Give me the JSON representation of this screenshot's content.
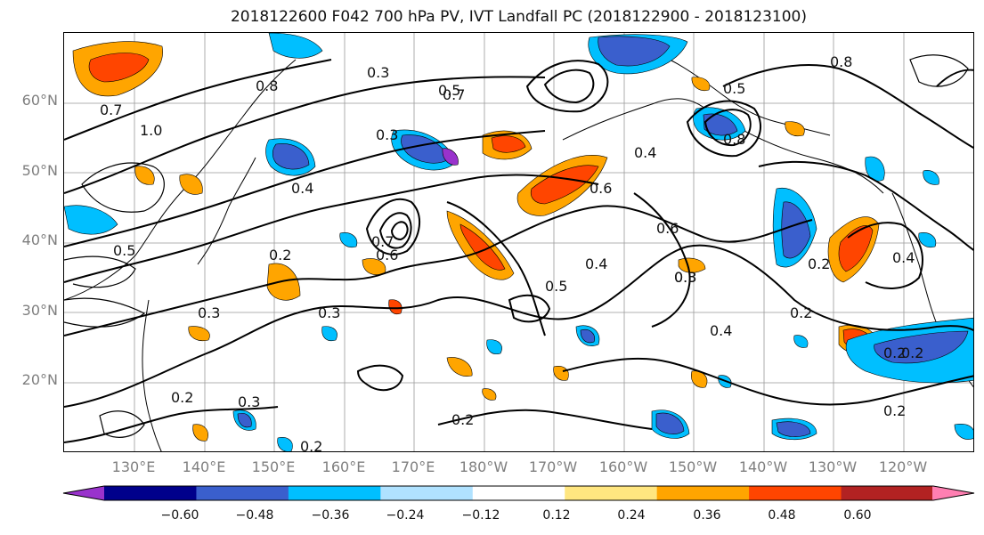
{
  "title": "2018122600 F042 700 hPa PV, IVT Landfall PC (2018122900 - 2018123100)",
  "lat_labels": [
    "60°N",
    "50°N",
    "40°N",
    "30°N",
    "20°N"
  ],
  "lon_labels": [
    "130°E",
    "140°E",
    "150°E",
    "160°E",
    "170°E",
    "180°W",
    "170°W",
    "160°W",
    "150°W",
    "140°W",
    "130°W",
    "120°W"
  ],
  "colorbar": {
    "ticks": [
      "−0.60",
      "−0.48",
      "−0.36",
      "−0.24",
      "−0.12",
      "0.12",
      "0.24",
      "0.36",
      "0.48",
      "0.60"
    ],
    "colors": [
      "#9932cc",
      "#00008b",
      "#3a5fcd",
      "#00bfff",
      "#b0e2ff",
      "#ffffff",
      "#ffe680",
      "#ffa500",
      "#ff4500",
      "#b22222",
      "#ff7fb2"
    ]
  },
  "contour_labels": [
    {
      "text": "0.7"
    },
    {
      "text": "1.0"
    },
    {
      "text": "0.3"
    },
    {
      "text": "0.8"
    },
    {
      "text": "0.5"
    },
    {
      "text": "0.4"
    },
    {
      "text": "0.6"
    },
    {
      "text": "0.2"
    },
    {
      "text": "0.3"
    },
    {
      "text": "0.5"
    },
    {
      "text": "0.8"
    },
    {
      "text": "0.4"
    },
    {
      "text": "0.6"
    },
    {
      "text": "0.2"
    },
    {
      "text": "0.3"
    },
    {
      "text": "0.2"
    },
    {
      "text": "0.3"
    },
    {
      "text": "0.2"
    },
    {
      "text": "0.2"
    },
    {
      "text": "0.2"
    },
    {
      "text": "0.4"
    },
    {
      "text": "0.7"
    },
    {
      "text": "0.5"
    },
    {
      "text": "0.4"
    },
    {
      "text": "0.3"
    },
    {
      "text": "0.5"
    },
    {
      "text": "0.8"
    },
    {
      "text": "0.7"
    },
    {
      "text": "0.6"
    },
    {
      "text": "0.3"
    },
    {
      "text": "0.2"
    },
    {
      "text": "0.4"
    },
    {
      "text": "0.2"
    },
    {
      "text": "0.3"
    },
    {
      "text": "0.2"
    }
  ]
}
